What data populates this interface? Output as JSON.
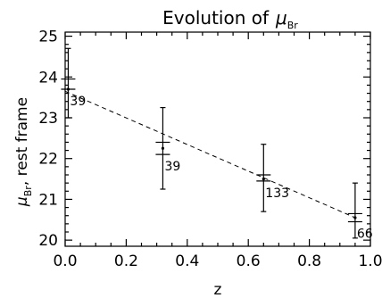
{
  "chart_data": {
    "type": "scatter",
    "title_main": "Evolution of",
    "title_symbol": "μ",
    "title_subscript": "Br",
    "xlabel": "z",
    "ylabel_symbol": "μ",
    "ylabel_subscript": "Br",
    "ylabel_rest": ", rest frame",
    "xlim": [
      0.0,
      1.0
    ],
    "ylim": [
      19.85,
      25.1
    ],
    "x_ticks": [
      "0.0",
      "0.2",
      "0.4",
      "0.6",
      "0.8",
      "1.0"
    ],
    "y_ticks": [
      "20",
      "21",
      "22",
      "23",
      "24",
      "25"
    ],
    "points": [
      {
        "x": 0.01,
        "y": 23.7,
        "yerr_low": 23.0,
        "yerr_high": 24.7,
        "mark_high": 23.95,
        "mark_low": 23.7,
        "n": "39"
      },
      {
        "x": 0.32,
        "y": 22.25,
        "yerr_low": 21.25,
        "yerr_high": 23.25,
        "mark_high": 22.4,
        "mark_low": 22.1,
        "n": "39"
      },
      {
        "x": 0.65,
        "y": 21.5,
        "yerr_low": 20.7,
        "yerr_high": 22.35,
        "mark_high": 21.6,
        "mark_low": 21.45,
        "n": "133"
      },
      {
        "x": 0.95,
        "y": 20.55,
        "yerr_low": 20.05,
        "yerr_high": 21.4,
        "mark_high": 20.65,
        "mark_low": 20.45,
        "n": "66"
      }
    ],
    "fit_line": {
      "x": [
        0.0,
        0.95
      ],
      "y": [
        23.65,
        20.55
      ]
    }
  }
}
